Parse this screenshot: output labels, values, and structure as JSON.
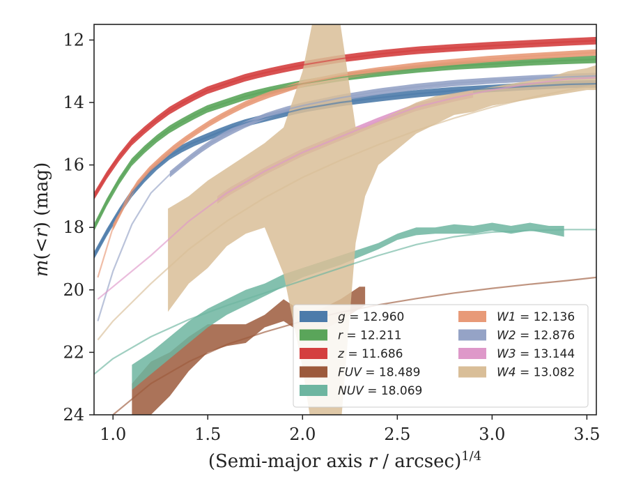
{
  "chart_data": {
    "type": "line",
    "xlabel": "(Semi-major axis r / arcsec)^1/4",
    "ylabel": "m(< r) (mag)",
    "xlim": [
      0.9,
      3.55
    ],
    "ylim": [
      24,
      11.5
    ],
    "y_inverted": true,
    "xticks": [
      "1.0",
      "1.5",
      "2.0",
      "2.5",
      "3.0",
      "3.5"
    ],
    "yticks": [
      "12",
      "14",
      "16",
      "18",
      "20",
      "22",
      "24"
    ],
    "legend_placement": "lower-right",
    "legend": [
      {
        "label": "g = 12.960",
        "color": "#4C7BAA"
      },
      {
        "label": "r = 12.211",
        "color": "#5AA55A"
      },
      {
        "label": "z = 11.686",
        "color": "#D43F3F"
      },
      {
        "label": "FUV = 18.489",
        "color": "#9C5A3C"
      },
      {
        "label": "NUV = 18.069",
        "color": "#6DB5A0"
      },
      {
        "label": "W1 = 12.136",
        "color": "#E89A78"
      },
      {
        "label": "W2 = 12.876",
        "color": "#95A3C6"
      },
      {
        "label": "W3 = 13.144",
        "color": "#DE98C9"
      },
      {
        "label": "W4 = 13.082",
        "color": "#D9BE98"
      }
    ],
    "series": [
      {
        "name": "g = 12.960",
        "color": "#4C7BAA",
        "band_width": 0.12,
        "x": [
          0.9,
          1.0,
          1.1,
          1.2,
          1.3,
          1.4,
          1.5,
          1.6,
          1.7,
          1.8,
          1.9,
          2.0,
          2.2,
          2.4,
          2.6,
          2.8,
          3.0,
          3.2,
          3.4,
          3.55
        ],
        "y": [
          18.9,
          17.8,
          16.9,
          16.2,
          15.7,
          15.35,
          15.1,
          14.85,
          14.65,
          14.5,
          14.35,
          14.2,
          14.0,
          13.85,
          13.72,
          13.62,
          13.55,
          13.48,
          13.42,
          13.4
        ],
        "band_x": [
          0.9,
          3.55
        ]
      },
      {
        "name": "r = 12.211",
        "color": "#5AA55A",
        "band_width": 0.12,
        "x": [
          0.9,
          1.0,
          1.1,
          1.2,
          1.3,
          1.4,
          1.5,
          1.6,
          1.7,
          1.8,
          1.9,
          2.0,
          2.2,
          2.4,
          2.6,
          2.8,
          3.0,
          3.2,
          3.4,
          3.55
        ],
        "y": [
          18.0,
          16.8,
          15.9,
          15.3,
          14.85,
          14.5,
          14.2,
          14.0,
          13.8,
          13.65,
          13.52,
          13.4,
          13.2,
          13.05,
          12.93,
          12.83,
          12.77,
          12.7,
          12.65,
          12.62
        ],
        "band_x": [
          0.9,
          3.55
        ]
      },
      {
        "name": "z = 11.686",
        "color": "#D43F3F",
        "band_width": 0.12,
        "x": [
          0.9,
          1.0,
          1.1,
          1.2,
          1.3,
          1.4,
          1.5,
          1.6,
          1.7,
          1.8,
          1.9,
          2.0,
          2.2,
          2.4,
          2.6,
          2.8,
          3.0,
          3.2,
          3.4,
          3.55
        ],
        "y": [
          17.0,
          16.0,
          15.25,
          14.7,
          14.25,
          13.9,
          13.6,
          13.4,
          13.2,
          13.05,
          12.92,
          12.8,
          12.6,
          12.45,
          12.33,
          12.25,
          12.18,
          12.12,
          12.06,
          12.02
        ],
        "band_x": [
          0.9,
          3.55
        ]
      },
      {
        "name": "FUV = 18.489",
        "color": "#9C5A3C",
        "x": [
          0.9,
          1.0,
          1.2,
          1.4,
          1.6,
          1.8,
          2.0,
          2.2,
          2.4,
          2.6,
          2.8,
          3.0,
          3.2,
          3.4,
          3.55
        ],
        "y": [
          24.6,
          24.0,
          23.0,
          22.3,
          21.75,
          21.35,
          21.0,
          20.72,
          20.48,
          20.28,
          20.1,
          19.95,
          19.82,
          19.7,
          19.6
        ],
        "band_x": [
          1.1,
          1.2,
          1.3,
          1.4,
          1.5,
          1.6,
          1.7,
          1.8,
          1.9,
          2.0,
          2.1,
          2.2,
          2.3,
          2.33
        ],
        "band_upper": [
          23.0,
          22.3,
          22.0,
          21.5,
          21.1,
          21.1,
          21.1,
          20.8,
          20.3,
          20.7,
          20.6,
          20.3,
          19.9,
          19.9
        ],
        "band_lower": [
          24.3,
          24.0,
          23.4,
          22.6,
          22.0,
          21.8,
          21.7,
          21.2,
          21.0,
          21.4,
          21.3,
          21.0,
          20.6,
          20.5
        ]
      },
      {
        "name": "NUV = 18.069",
        "color": "#6DB5A0",
        "x": [
          0.9,
          1.0,
          1.2,
          1.4,
          1.6,
          1.8,
          2.0,
          2.2,
          2.4,
          2.6,
          2.8,
          3.0,
          3.2,
          3.4,
          3.55
        ],
        "y": [
          22.7,
          22.2,
          21.5,
          20.95,
          20.5,
          20.1,
          19.7,
          19.3,
          18.9,
          18.55,
          18.3,
          18.15,
          18.1,
          18.07,
          18.07
        ],
        "band_x": [
          1.1,
          1.2,
          1.3,
          1.4,
          1.5,
          1.6,
          1.7,
          1.8,
          1.9,
          2.0,
          2.1,
          2.2,
          2.3,
          2.4,
          2.5,
          2.6,
          2.7,
          2.8,
          2.9,
          3.0,
          3.1,
          3.2,
          3.3,
          3.38
        ],
        "band_upper": [
          22.4,
          22.0,
          21.5,
          21.0,
          20.6,
          20.3,
          20.0,
          19.8,
          19.5,
          19.3,
          19.1,
          18.9,
          18.7,
          18.5,
          18.2,
          18.0,
          18.0,
          17.9,
          17.95,
          17.85,
          17.95,
          17.85,
          17.95,
          17.95
        ],
        "band_lower": [
          23.2,
          22.7,
          22.2,
          21.7,
          21.2,
          20.8,
          20.5,
          20.2,
          19.9,
          19.6,
          19.4,
          19.2,
          18.95,
          18.7,
          18.4,
          18.25,
          18.2,
          18.2,
          18.2,
          18.1,
          18.2,
          18.1,
          18.2,
          18.3
        ]
      },
      {
        "name": "W1 = 12.136",
        "color": "#E89A78",
        "band_width": 0.1,
        "x": [
          0.92,
          1.0,
          1.1,
          1.2,
          1.3,
          1.4,
          1.5,
          1.6,
          1.7,
          1.8,
          1.9,
          2.0,
          2.2,
          2.4,
          2.6,
          2.8,
          3.0,
          3.2,
          3.4,
          3.55
        ],
        "y": [
          19.6,
          18.0,
          16.8,
          16.1,
          15.55,
          15.1,
          14.7,
          14.35,
          14.05,
          13.8,
          13.6,
          13.4,
          13.15,
          12.97,
          12.82,
          12.7,
          12.6,
          12.52,
          12.45,
          12.4
        ],
        "band_x": [
          1.0,
          3.55
        ]
      },
      {
        "name": "W2 = 12.876",
        "color": "#95A3C6",
        "band_width": 0.1,
        "x": [
          0.92,
          1.0,
          1.1,
          1.2,
          1.3,
          1.4,
          1.5,
          1.6,
          1.7,
          1.8,
          1.9,
          2.0,
          2.2,
          2.4,
          2.6,
          2.8,
          3.0,
          3.2,
          3.4,
          3.55
        ],
        "y": [
          21.0,
          19.4,
          17.9,
          16.9,
          16.3,
          15.8,
          15.35,
          15.0,
          14.7,
          14.45,
          14.25,
          14.1,
          13.85,
          13.65,
          13.5,
          13.38,
          13.3,
          13.23,
          13.18,
          13.15
        ],
        "band_x": [
          1.3,
          3.55
        ]
      },
      {
        "name": "W3 = 13.144",
        "color": "#DE98C9",
        "band_width": 0.12,
        "x": [
          0.92,
          1.0,
          1.2,
          1.4,
          1.6,
          1.8,
          2.0,
          2.2,
          2.4,
          2.6,
          2.8,
          3.0,
          3.2,
          3.4,
          3.55
        ],
        "y": [
          20.3,
          19.9,
          18.9,
          17.8,
          16.9,
          16.2,
          15.6,
          15.1,
          14.6,
          14.15,
          13.85,
          13.6,
          13.4,
          13.25,
          13.2
        ],
        "band_x": [
          1.55,
          2.9
        ]
      },
      {
        "name": "W4 = 13.082",
        "color": "#D9BE98",
        "x": [
          0.92,
          1.0,
          1.2,
          1.4,
          1.6,
          1.8,
          2.0,
          2.2,
          2.4,
          2.6,
          2.8,
          3.0,
          3.2,
          3.4,
          3.55
        ],
        "y": [
          21.6,
          21.0,
          19.8,
          18.7,
          17.8,
          17.05,
          16.4,
          15.85,
          15.35,
          14.9,
          14.5,
          14.15,
          13.85,
          13.6,
          13.45
        ],
        "band_x": [
          1.29,
          1.4,
          1.5,
          1.6,
          1.7,
          1.8,
          1.9,
          2.0,
          2.05,
          2.1,
          2.2,
          2.28,
          2.33,
          2.4,
          2.5,
          2.6,
          2.7,
          2.8,
          2.9,
          3.0,
          3.1,
          3.2,
          3.3,
          3.4,
          3.5,
          3.55
        ],
        "band_upper": [
          17.4,
          17.0,
          16.5,
          16.1,
          15.7,
          15.3,
          14.8,
          13.0,
          11.5,
          11.5,
          11.5,
          14.8,
          14.8,
          14.6,
          14.3,
          14.0,
          13.8,
          13.7,
          13.6,
          13.5,
          13.4,
          13.3,
          13.2,
          13.0,
          12.9,
          12.8
        ],
        "band_lower": [
          20.7,
          19.8,
          19.3,
          18.6,
          18.2,
          18.0,
          19.5,
          22.5,
          24.5,
          24.5,
          24.5,
          18.5,
          17.0,
          16.0,
          15.5,
          15.0,
          14.7,
          14.4,
          14.3,
          14.1,
          14.0,
          13.9,
          13.8,
          13.7,
          13.6,
          13.6
        ]
      }
    ]
  }
}
